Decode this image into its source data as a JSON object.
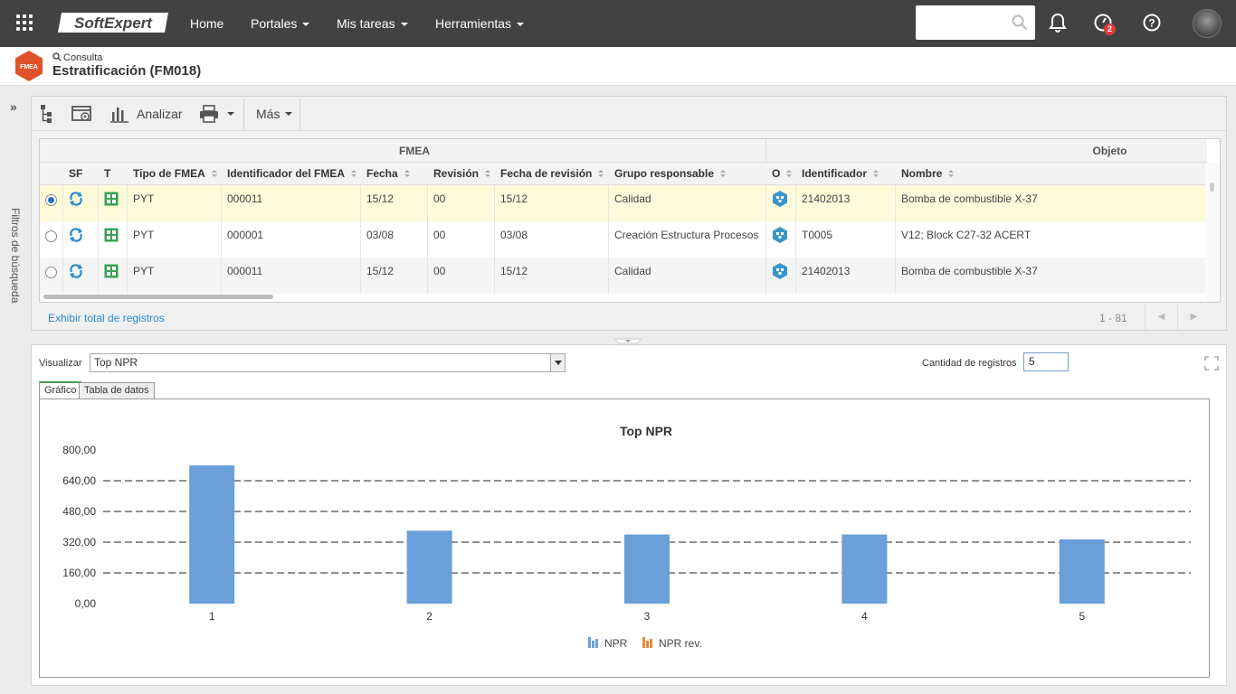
{
  "topbar": {
    "brand": "SoftExpert",
    "nav": [
      "Home",
      "Portales",
      "Mis tareas",
      "Herramientas"
    ],
    "notification_count": "2",
    "search_placeholder": ""
  },
  "header": {
    "breadcrumb": "Consulta",
    "title": "Estratificación (FM018)",
    "logo_text": "FMEA"
  },
  "sidebar": {
    "label": "Filtros de búsqueda"
  },
  "toolbar": {
    "analyze_label": "Analizar",
    "more_label": "Más"
  },
  "table": {
    "groups": [
      "FMEA",
      "Objeto"
    ],
    "columns": [
      "SF",
      "T",
      "Tipo de FMEA",
      "Identificador del FMEA",
      "Fecha",
      "Revisión",
      "Fecha de revisión",
      "Grupo responsable",
      "O",
      "Identificador",
      "Nombre"
    ],
    "rows": [
      {
        "tipo": "PYT",
        "id_fmea": "000011",
        "fecha": "15/12",
        "revision": "00",
        "fecha_rev": "15/12",
        "grupo": "Calidad",
        "identificador": "21402013",
        "nombre": "Bomba de combustible X-37",
        "selected": true
      },
      {
        "tipo": "PYT",
        "id_fmea": "000001",
        "fecha": "03/08",
        "revision": "00",
        "fecha_rev": "03/08",
        "grupo": "Creación Estructura Procesos",
        "identificador": "T0005",
        "nombre": "V12; Block C27-32 ACERT",
        "selected": false
      },
      {
        "tipo": "PYT",
        "id_fmea": "000011",
        "fecha": "15/12",
        "revision": "00",
        "fecha_rev": "15/12",
        "grupo": "Calidad",
        "identificador": "21402013",
        "nombre": "Bomba de combustible X-37",
        "selected": false
      }
    ],
    "footer_link": "Exhibir total de registros",
    "page_range": "1 - 81"
  },
  "analysis": {
    "visualize_label": "Visualizar",
    "visualize_value": "Top NPR",
    "count_label": "Cantidad de registros",
    "count_value": "5",
    "tabs": [
      "Gráfico",
      "Tabla de datos"
    ]
  },
  "colors": {
    "topbar": "#424242",
    "bar": "#6a9fd8",
    "npr_rev": "#e8893c",
    "selected_row": "#fdfbd9",
    "link": "#2a8bd0"
  },
  "chart_data": {
    "type": "bar",
    "title": "Top NPR",
    "categories": [
      "1",
      "2",
      "3",
      "4",
      "5"
    ],
    "series": [
      {
        "name": "NPR",
        "values": [
          720,
          380,
          360,
          360,
          335
        ]
      },
      {
        "name": "NPR rev.",
        "values": [
          0,
          0,
          0,
          0,
          0
        ]
      }
    ],
    "ylim": [
      0,
      800
    ],
    "yticks": [
      "0,00",
      "160,00",
      "320,00",
      "480,00",
      "640,00",
      "800,00"
    ],
    "grid": true,
    "legend": "bottom"
  }
}
